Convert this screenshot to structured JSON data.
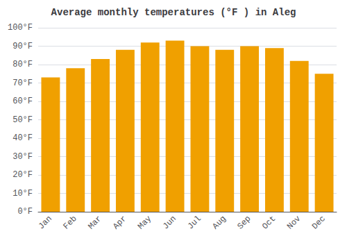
{
  "chart_data": {
    "type": "bar",
    "title": "Average monthly temperatures (°F ) in Aleg",
    "categories": [
      "Jan",
      "Feb",
      "Mar",
      "Apr",
      "May",
      "Jun",
      "Jul",
      "Aug",
      "Sep",
      "Oct",
      "Nov",
      "Dec"
    ],
    "values": [
      73,
      78,
      83,
      88,
      92,
      93,
      90,
      88,
      90,
      89,
      82,
      75
    ],
    "color": "#F0A000",
    "ylim": [
      0,
      100
    ],
    "yticks": [
      {
        "value": 0,
        "label": "0°F"
      },
      {
        "value": 10,
        "label": "10°F"
      },
      {
        "value": 20,
        "label": "20°F"
      },
      {
        "value": 30,
        "label": "30°F"
      },
      {
        "value": 40,
        "label": "40°F"
      },
      {
        "value": 50,
        "label": "50°F"
      },
      {
        "value": 60,
        "label": "60°F"
      },
      {
        "value": 70,
        "label": "70°F"
      },
      {
        "value": 80,
        "label": "80°F"
      },
      {
        "value": 90,
        "label": "90°F"
      },
      {
        "value": 100,
        "label": "100°F"
      }
    ],
    "grid": true
  }
}
